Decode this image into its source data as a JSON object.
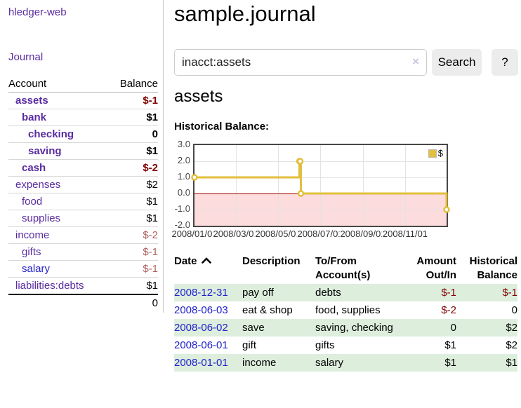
{
  "app": {
    "brand": "hledger-web",
    "nav": {
      "journal": "Journal"
    }
  },
  "sidebar": {
    "header": {
      "account": "Account",
      "balance": "Balance"
    },
    "accounts": [
      {
        "name": "assets",
        "balance": "$-1",
        "indent": 0,
        "bold": true,
        "balance_style": "neg-strong"
      },
      {
        "name": "bank",
        "balance": "$1",
        "indent": 1,
        "bold": true,
        "balance_style": "pos"
      },
      {
        "name": "checking",
        "balance": "0",
        "indent": 2,
        "bold": true,
        "balance_style": "pos"
      },
      {
        "name": "saving",
        "balance": "$1",
        "indent": 2,
        "bold": true,
        "balance_style": "pos"
      },
      {
        "name": "cash",
        "balance": "$-2",
        "indent": 1,
        "bold": true,
        "balance_style": "neg-strong"
      },
      {
        "name": "expenses",
        "balance": "$2",
        "indent": 0,
        "bold": false,
        "balance_style": "pos"
      },
      {
        "name": "food",
        "balance": "$1",
        "indent": 1,
        "bold": false,
        "balance_style": "pos"
      },
      {
        "name": "supplies",
        "balance": "$1",
        "indent": 1,
        "bold": false,
        "balance_style": "pos"
      },
      {
        "name": "income",
        "balance": "$-2",
        "indent": 0,
        "bold": false,
        "balance_style": "neg-soft"
      },
      {
        "name": "gifts",
        "balance": "$-1",
        "indent": 1,
        "bold": false,
        "balance_style": "neg-soft"
      },
      {
        "name": "salary",
        "balance": "$-1",
        "indent": 1,
        "bold": false,
        "balance_style": "neg-soft",
        "link_style": "blue"
      },
      {
        "name": "liabilities:debts",
        "balance": "$1",
        "indent": 0,
        "bold": false,
        "balance_style": "pos"
      }
    ],
    "total": "0"
  },
  "main": {
    "title": "sample.journal",
    "search": {
      "value": "inacct:assets",
      "clear_icon": "×",
      "search_button": "Search",
      "help_button": "?"
    },
    "account_heading": "assets",
    "chart_title": "Historical Balance:"
  },
  "chart_data": {
    "type": "line",
    "step": true,
    "title": "Historical Balance:",
    "series": [
      {
        "name": "$",
        "x": [
          "2008-01-01",
          "2008-06-01",
          "2008-06-02",
          "2008-06-03",
          "2008-12-31"
        ],
        "values": [
          1,
          2,
          2,
          0,
          -1
        ]
      }
    ],
    "x_range": [
      "2008-01-01",
      "2008-12-31"
    ],
    "ylim": [
      -2,
      3
    ],
    "ytick_labels": [
      "3.0",
      "2.0",
      "1.0",
      "0.0",
      "-1.0",
      "-2.0"
    ],
    "yticks": [
      3,
      2,
      1,
      0,
      -1,
      -2
    ],
    "xtick_labels": [
      "2008/01/01",
      "2008/03/01",
      "2008/05/01",
      "2008/07/01",
      "2008/09/01",
      "2008/11/01"
    ],
    "grid": true,
    "legend_position": "top-right",
    "legend": [
      {
        "label": "$",
        "color": "#e2bf3d"
      }
    ],
    "line_color": "#e2bf3d",
    "marker": "hollow-circle",
    "negative_region_fill": "#fcdcdc",
    "zero_line_color": "#a40000"
  },
  "register": {
    "headers": {
      "date": "Date",
      "description": "Description",
      "accounts": "To/From Account(s)",
      "amount": "Amount Out/In",
      "balance": "Historical Balance"
    },
    "rows": [
      {
        "date": "2008-12-31",
        "description": "pay off",
        "accounts": "debts",
        "amount": "$-1",
        "amount_neg": true,
        "balance": "$-1",
        "balance_neg": true
      },
      {
        "date": "2008-06-03",
        "description": "eat & shop",
        "accounts": "food, supplies",
        "amount": "$-2",
        "amount_neg": true,
        "balance": "0",
        "balance_neg": false
      },
      {
        "date": "2008-06-02",
        "description": "save",
        "accounts": "saving, checking",
        "amount": "0",
        "amount_neg": false,
        "balance": "$2",
        "balance_neg": false
      },
      {
        "date": "2008-06-01",
        "description": "gift",
        "accounts": "gifts",
        "amount": "$1",
        "amount_neg": false,
        "balance": "$2",
        "balance_neg": false
      },
      {
        "date": "2008-01-01",
        "description": "income",
        "accounts": "salary",
        "amount": "$1",
        "amount_neg": false,
        "balance": "$1",
        "balance_neg": false
      }
    ]
  }
}
